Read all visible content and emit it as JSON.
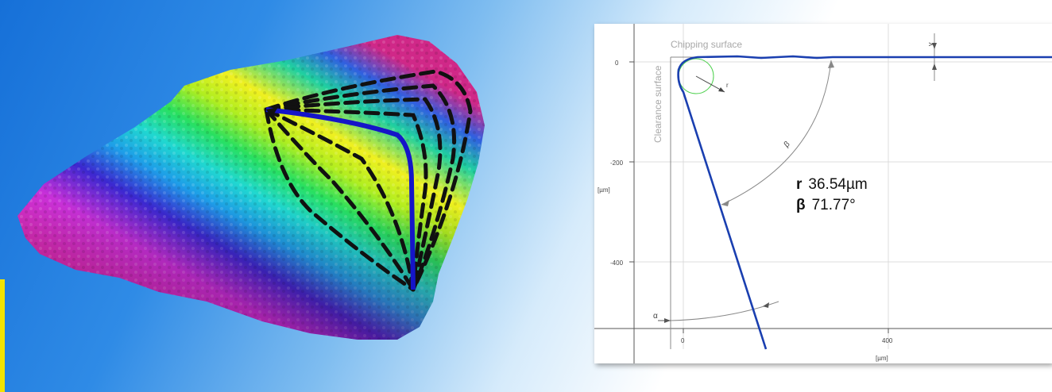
{
  "profile": {
    "chipping_surface_label": "Chipping surface",
    "clearance_surface_label": "Clearance surface",
    "y_axis_unit": "[µm]",
    "x_axis_unit": "[µm]",
    "y_ticks": [
      "0",
      "-200",
      "-400"
    ],
    "x_ticks": [
      "0",
      "400"
    ],
    "angle_labels": {
      "beta": "β",
      "alpha": "α",
      "gamma": "γ",
      "radius": "r"
    },
    "radius_symbol": "r",
    "radius_value": "36.54µm",
    "beta_symbol": "β",
    "beta_value": "71.77°"
  },
  "colors": {
    "profile_line": "#1a3fb0",
    "fit_circle": "#4cd04c",
    "background_blue": "#1670d8",
    "edge_line": "#1515c8",
    "dash_lines": "#111111"
  },
  "icons": {
    "surface": "3d-cutting-edge-render"
  }
}
